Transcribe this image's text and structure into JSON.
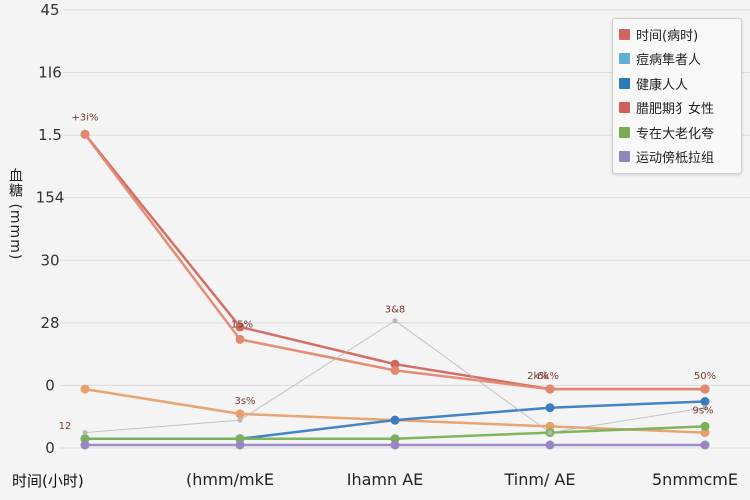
{
  "chart_data": {
    "type": "line",
    "title": "",
    "xlabel": "时间(小时)",
    "ylabel": "血糖 (mmm)",
    "grid": true,
    "legend_position": "top-right",
    "x_ticks": [
      "(hmm/mkE",
      "Ihamn AE",
      "Tinm/ AE",
      "5nmmcmE"
    ],
    "y_ticks": [
      "45",
      "1I6",
      "1.5",
      "154",
      "30",
      "28",
      "0",
      "0"
    ],
    "x": [
      0,
      1,
      2,
      3,
      4
    ],
    "ylim": [
      0,
      7
    ],
    "series": [
      {
        "name": "时间(病时)",
        "color": "#d0665e",
        "values": [
          5.0,
          1.9,
          1.3,
          0.9,
          0.9
        ]
      },
      {
        "name": "痘病隼者人",
        "color": "#e7a06c",
        "values": [
          0.9,
          0.5,
          0.4,
          0.3,
          0.2
        ]
      },
      {
        "name": "健康人人",
        "color": "#3b7cc0",
        "values": [
          0.1,
          0.1,
          0.4,
          0.6,
          0.7
        ]
      },
      {
        "name": "腊肥期犭女性",
        "color": "#e2886e",
        "values": [
          5.0,
          1.7,
          1.2,
          0.9,
          0.9
        ]
      },
      {
        "name": "专在大老化夸",
        "color": "#79b156",
        "values": [
          0.1,
          0.1,
          0.1,
          0.2,
          0.3
        ]
      },
      {
        "name": "运动傍柢拉组",
        "color": "#9a86c4",
        "values": [
          0.0,
          0.0,
          0.0,
          0.0,
          0.0
        ]
      },
      {
        "name": "",
        "color": "#b7b7b7",
        "values": [
          0.2,
          0.4,
          2.0,
          0.2,
          0.6
        ]
      }
    ],
    "legend_swatches": [
      "#d0665e",
      "#5fb0d8",
      "#2a7bb5",
      "#cf5f5a",
      "#79ab54",
      "#9485bd"
    ],
    "annotations": [
      "+3i%",
      "15%",
      "3&8",
      "2k%",
      "6k%",
      "50%",
      "12",
      "3s%",
      "9s%"
    ]
  }
}
